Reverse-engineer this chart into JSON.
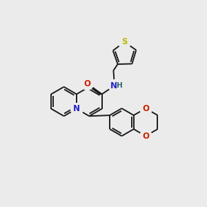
{
  "bg_color": "#ebebeb",
  "bond_color": "#1a1a1a",
  "N_color": "#2222cc",
  "O_color": "#cc2200",
  "S_color": "#bbbb00",
  "H_color": "#336666",
  "lw": 1.4,
  "figsize": [
    3.0,
    3.0
  ],
  "dpi": 100,
  "xlim": [
    0,
    10
  ],
  "ylim": [
    0,
    10
  ]
}
